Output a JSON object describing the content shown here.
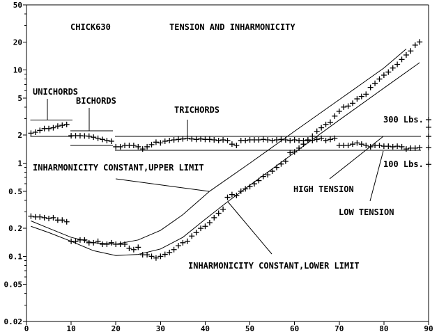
{
  "chart_data": {
    "type": "scatter",
    "title": "TENSION AND INHARMONICITY",
    "subtitle": "CHICK630",
    "xlabel": "",
    "ylabel": "",
    "xlim": [
      0,
      90
    ],
    "ylim": [
      0.02,
      50
    ],
    "yscale": "log",
    "grid": false,
    "x_ticks": [
      0,
      10,
      20,
      30,
      40,
      50,
      60,
      70,
      80,
      90
    ],
    "y_ticks": [
      50,
      20,
      10,
      5,
      2,
      1,
      0.5,
      0.2,
      0.1,
      0.05,
      0.02
    ],
    "y_tick_labels": [
      "50",
      "20",
      "10",
      "5",
      "2",
      "1",
      "0.5",
      "0.2",
      "0.1",
      "0.05",
      "0.02"
    ],
    "colors": {
      "ink": "#000000",
      "background": "#ffffff"
    },
    "series": [
      {
        "marker": "plus",
        "x_start": 1,
        "values": [
          0.27,
          0.265,
          0.265,
          0.26,
          0.255,
          0.26,
          0.245,
          0.245,
          0.235,
          0.145,
          0.145,
          0.15,
          0.15,
          0.14,
          0.14,
          0.145,
          0.135,
          0.135,
          0.14,
          0.135,
          0.135,
          0.135,
          0.122,
          0.118,
          0.125,
          0.104,
          0.104,
          0.1,
          0.096,
          0.1,
          0.105,
          0.11,
          0.118,
          0.13,
          0.14,
          0.145,
          0.165,
          0.18,
          0.2,
          0.21,
          0.23,
          0.26,
          0.29,
          0.32,
          0.43,
          0.46,
          0.45,
          0.5,
          0.53,
          0.56,
          0.6,
          0.65,
          0.72,
          0.75,
          0.82,
          0.9,
          0.98,
          1.05,
          1.3,
          1.32,
          1.45,
          1.6,
          1.75,
          1.95,
          2.2,
          2.4,
          2.6,
          2.75,
          3.2,
          3.6,
          4.0,
          4.1,
          4.4,
          4.9,
          5.2,
          5.5,
          6.5,
          7.2,
          8.0,
          8.8,
          9.5,
          10.5,
          11.5,
          13,
          14.5,
          16,
          18.5,
          20
        ]
      },
      {
        "marker": "plus",
        "x_start": 1,
        "values": [
          2.1,
          2.15,
          2.25,
          2.35,
          2.35,
          2.4,
          2.5,
          2.55,
          2.6,
          1.97,
          1.97,
          1.97,
          1.96,
          1.95,
          1.9,
          1.85,
          1.8,
          1.75,
          1.72,
          1.5,
          1.5,
          1.55,
          1.55,
          1.55,
          1.5,
          1.42,
          1.5,
          1.58,
          1.68,
          1.65,
          1.72,
          1.75,
          1.78,
          1.8,
          1.82,
          1.85,
          1.82,
          1.8,
          1.82,
          1.8,
          1.8,
          1.78,
          1.75,
          1.78,
          1.75,
          1.6,
          1.55,
          1.75,
          1.75,
          1.78,
          1.78,
          1.78,
          1.8,
          1.78,
          1.75,
          1.78,
          1.8,
          1.78,
          1.75,
          1.78,
          1.75,
          1.75,
          1.78,
          1.75,
          1.8,
          1.85,
          1.75,
          1.8,
          1.85,
          1.55,
          1.55,
          1.55,
          1.6,
          1.65,
          1.6,
          1.55,
          1.5,
          1.55,
          1.55,
          1.52,
          1.52,
          1.5,
          1.52,
          1.5,
          1.42,
          1.45,
          1.45,
          1.47
        ]
      }
    ],
    "lines": [
      {
        "label": "INHARMONICITY CONSTANT,UPPER LIMIT",
        "points": [
          [
            1,
            0.24
          ],
          [
            5,
            0.2
          ],
          [
            10,
            0.16
          ],
          [
            15,
            0.14
          ],
          [
            20,
            0.135
          ],
          [
            25,
            0.15
          ],
          [
            30,
            0.19
          ],
          [
            35,
            0.28
          ],
          [
            41,
            0.5
          ],
          [
            50,
            1.0
          ],
          [
            60,
            2.2
          ],
          [
            70,
            4.8
          ],
          [
            80,
            10.5
          ],
          [
            85,
            16.8
          ]
        ]
      },
      {
        "label": "INHARMONICITY CONSTANT,LOWER LIMIT",
        "points": [
          [
            1,
            0.21
          ],
          [
            5,
            0.18
          ],
          [
            10,
            0.145
          ],
          [
            15,
            0.115
          ],
          [
            20,
            0.102
          ],
          [
            25,
            0.105
          ],
          [
            30,
            0.12
          ],
          [
            35,
            0.16
          ],
          [
            40,
            0.25
          ],
          [
            45,
            0.385
          ],
          [
            50,
            0.58
          ],
          [
            60,
            1.3
          ],
          [
            70,
            2.9
          ],
          [
            80,
            6.4
          ],
          [
            88,
            12
          ]
        ]
      }
    ],
    "tension_bands": [
      {
        "label": "UNICHORDS",
        "x": [
          1,
          10
        ],
        "y": [
          1.94,
          2.9
        ]
      },
      {
        "label": "BICHORDS",
        "x": [
          10,
          19
        ],
        "y": [
          1.55,
          2.23
        ]
      },
      {
        "label": "TRICHORDS",
        "x": [
          20,
          88
        ],
        "y": [
          1.37,
          1.94
        ]
      }
    ],
    "tension_scale": {
      "high_label": "300 Lbs.",
      "low_label": "100 Lbs.",
      "marks": [
        2.93,
        2.43,
        1.94,
        1.47,
        0.97
      ]
    },
    "annotations": {
      "high_tension": "HIGH TENSION",
      "low_tension": "LOW TENSION"
    }
  }
}
